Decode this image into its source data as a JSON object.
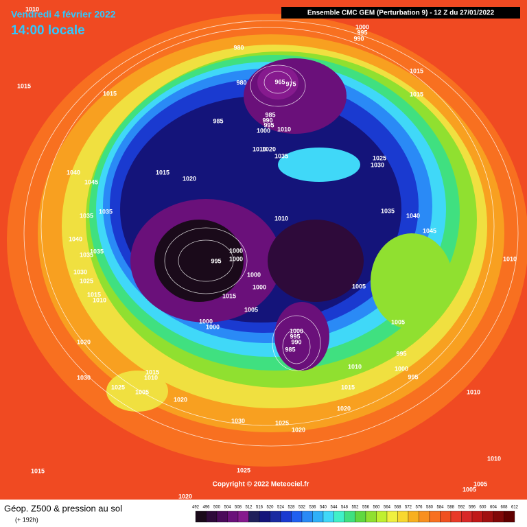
{
  "header": {
    "date": "Vendredi 4 février 2022",
    "time": "14:00 locale",
    "model": "Ensemble CMC GEM  (Perturbation 9)  -  12 Z du 27/01/2022",
    "copyright": "Copyright © 2022 Meteociel.fr"
  },
  "legend": {
    "title": "Géop. Z500 & pression au sol",
    "subtitle": "(+ 192h)",
    "scale": [
      492,
      496,
      500,
      504,
      508,
      512,
      516,
      520,
      524,
      528,
      532,
      536,
      540,
      544,
      548,
      552,
      556,
      560,
      564,
      568,
      572,
      576,
      580,
      584,
      588,
      592,
      596,
      600,
      604,
      608,
      612
    ],
    "colors": [
      "#1a0a1a",
      "#2e0a3a",
      "#4a0a5a",
      "#6a107a",
      "#861a8e",
      "#20205a",
      "#14147a",
      "#1a2aa0",
      "#1a3ad0",
      "#2060f0",
      "#2a8af6",
      "#30b0f8",
      "#40d8f8",
      "#40f0c8",
      "#40e080",
      "#60d840",
      "#90e030",
      "#c0f030",
      "#f0f040",
      "#f8d830",
      "#f8b020",
      "#f89020",
      "#f87020",
      "#f05020",
      "#e83a28",
      "#d82828",
      "#c01818",
      "#a01010",
      "#800808",
      "#600000"
    ]
  },
  "isobars": [
    1010,
    1015,
    1015,
    1000,
    995,
    990,
    1015,
    1015,
    980,
    980,
    965,
    975,
    985,
    985,
    990,
    995,
    1000,
    1010,
    1035,
    1010,
    1020,
    1025,
    1030,
    1015,
    1020,
    1040,
    1045,
    1035,
    1035,
    1040,
    1035,
    1035,
    1010,
    1035,
    1040,
    1045,
    1010,
    1030,
    1025,
    1015,
    1010,
    1000,
    1000,
    995,
    1000,
    1000,
    1015,
    1005,
    1005,
    1000,
    1000,
    1000,
    995,
    990,
    985,
    1010,
    1005,
    995,
    1000,
    995,
    1020,
    1030,
    1025,
    1015,
    1010,
    1005,
    1020,
    1030,
    1025,
    1020,
    1015,
    1020,
    1010,
    1010,
    1015,
    1025,
    1005,
    1005,
    1020
  ]
}
